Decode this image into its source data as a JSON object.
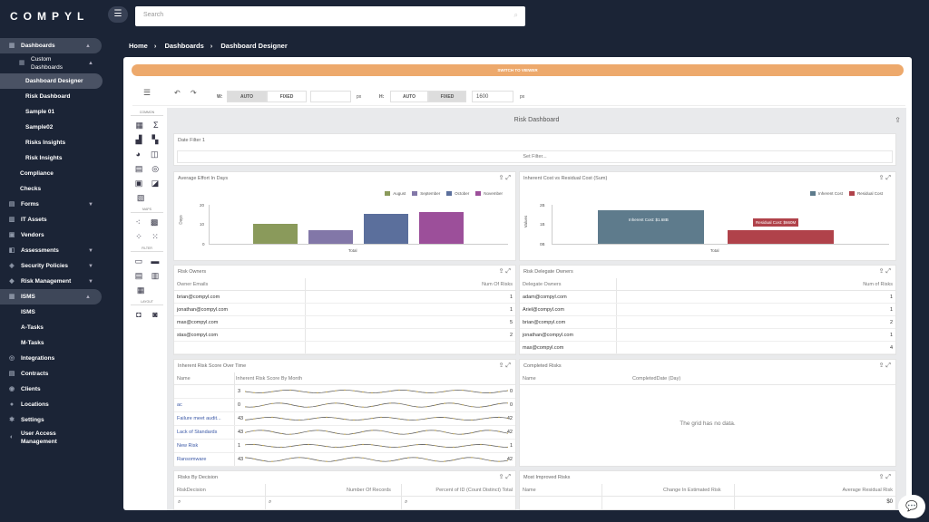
{
  "brand": "COMPYL",
  "search": {
    "placeholder": "Search"
  },
  "sidebar": {
    "dashboards": "Dashboards",
    "custom_dashboards": "Custom Dashboards",
    "dashboard_designer": "Dashboard Designer",
    "risk_dashboard": "Risk Dashboard",
    "sample01": "Sample 01",
    "sample02": "Sample02",
    "risks_insights": "Risks Insights",
    "risk_insights": "Risk Insights",
    "compliance": "Compliance",
    "checks": "Checks",
    "forms": "Forms",
    "it_assets": "IT Assets",
    "vendors": "Vendors",
    "assessments": "Assessments",
    "security_policies": "Security Policies",
    "risk_management": "Risk Management",
    "isms": "ISMS",
    "isms_sub": "ISMS",
    "a_tasks": "A-Tasks",
    "m_tasks": "M-Tasks",
    "integrations": "Integrations",
    "contracts": "Contracts",
    "clients": "Clients",
    "locations": "Locations",
    "settings": "Settings",
    "user_access": "User Access Management"
  },
  "breadcrumb": [
    "Home",
    "Dashboards",
    "Dashboard Designer"
  ],
  "switch_label": "SWITCH TO VIEWER",
  "toolbar": {
    "w_label": "W:",
    "h_label": "H:",
    "auto": "AUTO",
    "fixed": "FIXED",
    "px": "px",
    "height_value": "1600"
  },
  "palette": {
    "common": "COMMON",
    "maps": "MAPS",
    "filter": "FILTER",
    "layout": "LAYOUT"
  },
  "dashboard_title": "Risk Dashboard",
  "date_filter": {
    "title": "Date Filter 1",
    "button": "Set Filter..."
  },
  "effort_chart": {
    "title": "Average Effort In Days",
    "ylabel": "Days",
    "xlabel": "Total",
    "yticks": [
      "0",
      "10",
      "20"
    ],
    "chart_data": {
      "type": "bar",
      "categories": [
        "Total"
      ],
      "ylim": [
        0,
        20
      ],
      "ylabel": "Days",
      "xlabel": "Total",
      "series": [
        {
          "name": "August",
          "values": [
            10
          ],
          "color": "#8a9a5b"
        },
        {
          "name": "September",
          "values": [
            7
          ],
          "color": "#8277a8"
        },
        {
          "name": "October",
          "values": [
            15
          ],
          "color": "#5b6f9c"
        },
        {
          "name": "November",
          "values": [
            16
          ],
          "color": "#9c4f9a"
        }
      ]
    }
  },
  "cost_chart": {
    "title": "Inherent Cost vs Residual Cost (Sum)",
    "ylabel": "Values",
    "xlabel": "Total",
    "yticks": [
      "0B",
      "1B",
      "2B"
    ],
    "inherent_tip": "Inherent Cost: $1.68B",
    "residual_tip": "Residual Cost: $660M",
    "chart_data": {
      "type": "bar",
      "categories": [
        "Total"
      ],
      "ylim": [
        0,
        2
      ],
      "ylabel": "Values",
      "series": [
        {
          "name": "Inherent Cost",
          "values": [
            1.68
          ],
          "color": "#5e7b8c"
        },
        {
          "name": "Residual Cost",
          "values": [
            0.66
          ],
          "color": "#b0424a"
        }
      ]
    }
  },
  "risk_owners": {
    "title": "Risk Owners",
    "col1": "Owner Emails",
    "col2": "Num Of Risks",
    "rows": [
      [
        "brian@compyl.com",
        "1"
      ],
      [
        "jonathan@compyl.com",
        "1"
      ],
      [
        "max@compyl.com",
        "5"
      ],
      [
        "stas@compyl.com",
        "2"
      ]
    ]
  },
  "delegate_owners": {
    "title": "Risk Delegate Owners",
    "col1": "Delegate Owners",
    "col2": "Num of Risks",
    "rows": [
      [
        "adam@compyl.com",
        "1"
      ],
      [
        "Ariel@compyl.com",
        "1"
      ],
      [
        "brian@compyl.com",
        "2"
      ],
      [
        "jonathan@compyl.com",
        "1"
      ],
      [
        "max@compyl.com",
        "4"
      ]
    ]
  },
  "inherent_over_time": {
    "title": "Inherent Risk Score Over Time",
    "col1": "Name",
    "col2": "Inherent Risk Score By Month",
    "rows": [
      {
        "name": "",
        "start": "3",
        "end": "0"
      },
      {
        "name": "ac",
        "start": "0",
        "end": "0"
      },
      {
        "name": "Failure meet audit...",
        "start": "43",
        "end": "42"
      },
      {
        "name": "Lack of Standards",
        "start": "43",
        "end": "42"
      },
      {
        "name": "New Risk",
        "start": "1",
        "end": "1"
      },
      {
        "name": "Ransomware",
        "start": "43",
        "end": "42"
      }
    ]
  },
  "completed_risks": {
    "title": "Completed Risks",
    "col1": "Name",
    "col2": "CompletedDate (Day)",
    "empty": "The grid has no data."
  },
  "risks_by_decision": {
    "title": "Risks By Decision",
    "col1": "RiskDecision",
    "col2": "Number Of Records",
    "col3": "Percent of ID (Count Distinct) Total"
  },
  "most_improved": {
    "title": "Most Improved Risks",
    "col1": "Name",
    "col2": "Change In Estimated Risk",
    "col3": "Average Residual Risk",
    "value": "$0"
  }
}
